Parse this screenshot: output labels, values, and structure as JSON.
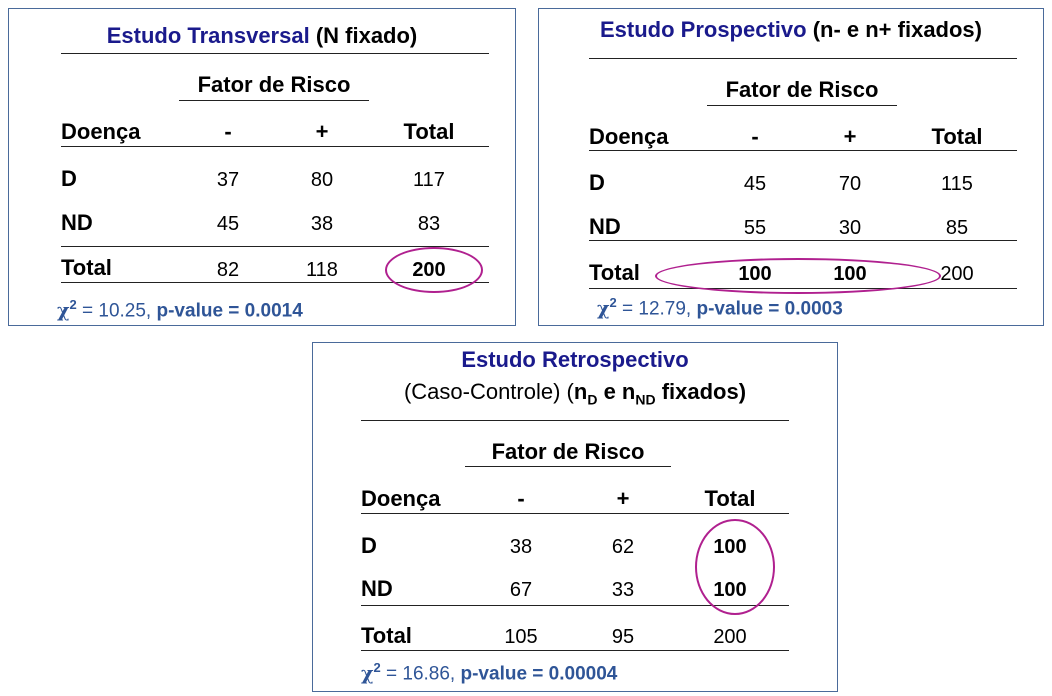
{
  "panels": [
    {
      "title_name": "Estudo Transversal",
      "title_rest": " (N fixado)",
      "factor_header": "Fator de Risco",
      "col_headers": [
        "Doença",
        "-",
        "+",
        "Total"
      ],
      "rows": [
        {
          "label": "D",
          "minus": "37",
          "plus": "80",
          "total": "117"
        },
        {
          "label": "ND",
          "minus": "45",
          "plus": "38",
          "total": "83"
        },
        {
          "label": "Total",
          "minus": "82",
          "plus": "118",
          "total": "200"
        }
      ],
      "chi_symbol": "χ",
      "chi_exp": "2",
      "chi_value": " = 10.25, ",
      "pvalue": "p-value = 0.0014"
    },
    {
      "title_name": "Estudo Prospectivo",
      "title_rest": " (n- e n+ fixados)",
      "factor_header": "Fator de Risco",
      "col_headers": [
        "Doença",
        "-",
        "+",
        "Total"
      ],
      "rows": [
        {
          "label": "D",
          "minus": "45",
          "plus": "70",
          "total": "115"
        },
        {
          "label": "ND",
          "minus": "55",
          "plus": "30",
          "total": "85"
        },
        {
          "label": "Total",
          "minus": "100",
          "plus": "100",
          "total": "200"
        }
      ],
      "chi_symbol": "χ",
      "chi_exp": "2",
      "chi_value": " = 12.79, ",
      "pvalue": "p-value = 0.0003"
    },
    {
      "title_name": "Estudo Retrospectivo",
      "subtitle_a": "(Caso-Controle) (",
      "subtitle_n1": "n",
      "subtitle_sub1": "D",
      "subtitle_e": " e n",
      "subtitle_sub2": "ND",
      "subtitle_b": " fixados)",
      "factor_header": "Fator de Risco",
      "col_headers": [
        "Doença",
        "-",
        "+",
        "Total"
      ],
      "rows": [
        {
          "label": "D",
          "minus": "38",
          "plus": "62",
          "total": "100"
        },
        {
          "label": "ND",
          "minus": "67",
          "plus": "33",
          "total": "100"
        },
        {
          "label": "Total",
          "minus": "105",
          "plus": "95",
          "total": "200"
        }
      ],
      "chi_symbol": "χ",
      "chi_exp": "2",
      "chi_value": " = 16.86, ",
      "pvalue": "p-value = 0.00004"
    }
  ],
  "colors": {
    "title": "#1a1a8c",
    "stat": "#2f5597",
    "ellipse": "#b0208f",
    "border": "#4a6a9a"
  }
}
